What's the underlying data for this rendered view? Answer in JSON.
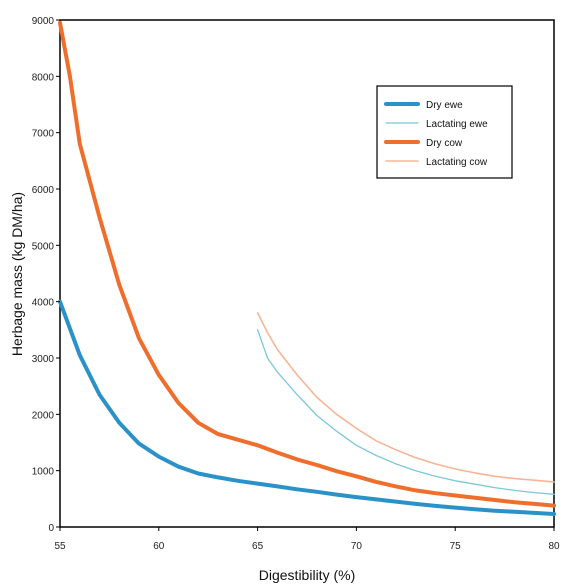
{
  "chart_data": {
    "type": "line",
    "xlabel": "Digestibility (%)",
    "ylabel": "Herbage mass (kg DM/ha)",
    "xlim": [
      55,
      80
    ],
    "ylim": [
      0,
      9000
    ],
    "x_ticks": [
      "55",
      "60",
      "65",
      "70",
      "75",
      "80"
    ],
    "y_ticks": [
      "0",
      "1000",
      "2000",
      "3000",
      "4000",
      "5000",
      "6000",
      "7000",
      "8000",
      "9000"
    ],
    "grid": false,
    "legend_position": "top-right",
    "series": [
      {
        "name": "Dry ewe",
        "color": "#2a92c8",
        "x": [
          55,
          56,
          57,
          58,
          59,
          60,
          61,
          62,
          63,
          64,
          65,
          66,
          67,
          68,
          69,
          70,
          71,
          72,
          73,
          74,
          75,
          76,
          77,
          78,
          79,
          80
        ],
        "y": [
          4000,
          3050,
          2350,
          1850,
          1480,
          1250,
          1070,
          950,
          880,
          820,
          770,
          720,
          670,
          625,
          575,
          530,
          490,
          450,
          410,
          375,
          345,
          315,
          290,
          270,
          250,
          230
        ]
      },
      {
        "name": "Lactating ewe",
        "color": "#7cc7d8",
        "x": [
          65,
          65.5,
          66,
          67,
          68,
          69,
          70,
          71,
          72,
          73,
          74,
          75,
          76,
          77,
          78,
          79,
          80
        ],
        "y": [
          3500,
          3000,
          2750,
          2350,
          1980,
          1700,
          1450,
          1270,
          1120,
          1000,
          900,
          820,
          760,
          700,
          650,
          610,
          580
        ]
      },
      {
        "name": "Dry cow",
        "color": "#f06e2c",
        "x": [
          55,
          55.5,
          56,
          57,
          58,
          59,
          60,
          61,
          62,
          63,
          64,
          65,
          66,
          67,
          68,
          69,
          70,
          71,
          72,
          73,
          74,
          75,
          76,
          77,
          78,
          79,
          80
        ],
        "y": [
          8950,
          8000,
          6800,
          5500,
          4300,
          3350,
          2700,
          2200,
          1850,
          1650,
          1550,
          1450,
          1320,
          1200,
          1100,
          990,
          900,
          800,
          720,
          650,
          600,
          560,
          520,
          480,
          440,
          410,
          380
        ]
      },
      {
        "name": "Lactating cow",
        "color": "#f7b596",
        "x": [
          65,
          65.5,
          66,
          67,
          68,
          69,
          70,
          71,
          72,
          73,
          74,
          75,
          76,
          77,
          78,
          79,
          80
        ],
        "y": [
          3800,
          3450,
          3150,
          2700,
          2300,
          2000,
          1750,
          1530,
          1370,
          1230,
          1120,
          1030,
          960,
          900,
          860,
          830,
          800
        ]
      }
    ]
  }
}
